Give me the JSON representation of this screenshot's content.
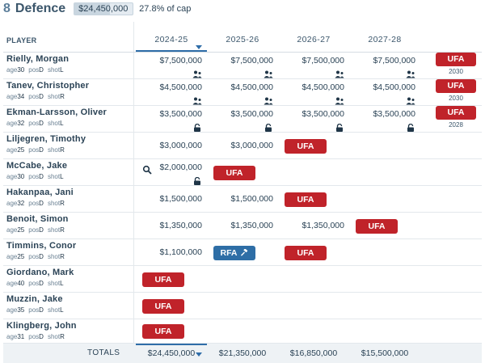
{
  "header": {
    "count": "8",
    "title": "Defence",
    "cap_total": "$24,450,000",
    "cap_pct_text": "27.8% of cap",
    "cap_fraction": 0.278
  },
  "columns": {
    "player": "PLAYER",
    "seasons": [
      "2024-25",
      "2025-26",
      "2026-27",
      "2027-28"
    ],
    "selected_season_index": 0
  },
  "meta_labels": {
    "age": "age",
    "pos": "pos",
    "shot": "shot"
  },
  "players": [
    {
      "name": "Rielly, Morgan",
      "age": "30",
      "pos": "D",
      "shot": "L",
      "cells": [
        {
          "amount": "$7,500,000",
          "icon": "no-move-clause-icon"
        },
        {
          "amount": "$7,500,000",
          "icon": "no-move-clause-icon"
        },
        {
          "amount": "$7,500,000",
          "icon": "no-move-clause-icon"
        },
        {
          "amount": "$7,500,000",
          "icon": "no-move-clause-icon"
        }
      ],
      "fa": {
        "label": "UFA",
        "year": "2030"
      }
    },
    {
      "name": "Tanev, Christopher",
      "age": "34",
      "pos": "D",
      "shot": "R",
      "cells": [
        {
          "amount": "$4,500,000",
          "icon": "no-move-clause-icon"
        },
        {
          "amount": "$4,500,000",
          "icon": "no-move-clause-icon"
        },
        {
          "amount": "$4,500,000",
          "icon": "no-move-clause-icon"
        },
        {
          "amount": "$4,500,000",
          "icon": "no-move-clause-icon"
        }
      ],
      "fa": {
        "label": "UFA",
        "year": "2030"
      }
    },
    {
      "name": "Ekman-Larsson, Oliver",
      "age": "32",
      "pos": "D",
      "shot": "L",
      "cells": [
        {
          "amount": "$3,500,000",
          "icon": "lock-icon"
        },
        {
          "amount": "$3,500,000",
          "icon": "lock-icon"
        },
        {
          "amount": "$3,500,000",
          "icon": "lock-icon"
        },
        {
          "amount": "$3,500,000",
          "icon": "lock-icon"
        }
      ],
      "fa": {
        "label": "UFA",
        "year": "2028"
      }
    },
    {
      "name": "Liljegren, Timothy",
      "age": "25",
      "pos": "D",
      "shot": "R",
      "cells": [
        {
          "amount": "$3,000,000"
        },
        {
          "amount": "$3,000,000"
        },
        {
          "badge": "UFA",
          "kind": "ufa"
        }
      ]
    },
    {
      "name": "McCabe, Jake",
      "age": "30",
      "pos": "D",
      "shot": "L",
      "cells": [
        {
          "amount": "$2,000,000",
          "icon": "lock-icon",
          "lead_icon": "search-icon"
        },
        {
          "badge": "UFA",
          "kind": "ufa"
        }
      ]
    },
    {
      "name": "Hakanpaa, Jani",
      "age": "32",
      "pos": "D",
      "shot": "R",
      "cells": [
        {
          "amount": "$1,500,000"
        },
        {
          "amount": "$1,500,000"
        },
        {
          "badge": "UFA",
          "kind": "ufa"
        }
      ]
    },
    {
      "name": "Benoit, Simon",
      "age": "25",
      "pos": "D",
      "shot": "R",
      "cells": [
        {
          "amount": "$1,350,000"
        },
        {
          "amount": "$1,350,000"
        },
        {
          "amount": "$1,350,000"
        },
        {
          "badge": "UFA",
          "kind": "ufa"
        }
      ]
    },
    {
      "name": "Timmins, Conor",
      "age": "25",
      "pos": "D",
      "shot": "R",
      "cells": [
        {
          "amount": "$1,100,000"
        },
        {
          "badge": "RFA",
          "kind": "rfa",
          "icon": "arbitration-gavel-icon"
        },
        {
          "badge": "UFA",
          "kind": "ufa"
        }
      ]
    },
    {
      "name": "Giordano, Mark",
      "age": "40",
      "pos": "D",
      "shot": "L",
      "cells": [
        {
          "badge": "UFA",
          "kind": "ufa"
        }
      ]
    },
    {
      "name": "Muzzin, Jake",
      "age": "35",
      "pos": "D",
      "shot": "L",
      "cells": [
        {
          "badge": "UFA",
          "kind": "ufa"
        }
      ]
    },
    {
      "name": "Klingberg, John",
      "age": "31",
      "pos": "D",
      "shot": "R",
      "cells": [
        {
          "badge": "UFA",
          "kind": "ufa"
        }
      ]
    }
  ],
  "totals": {
    "label": "TOTALS",
    "values": [
      "$24,450,000",
      "$21,350,000",
      "$16,850,000",
      "$15,500,000"
    ]
  }
}
